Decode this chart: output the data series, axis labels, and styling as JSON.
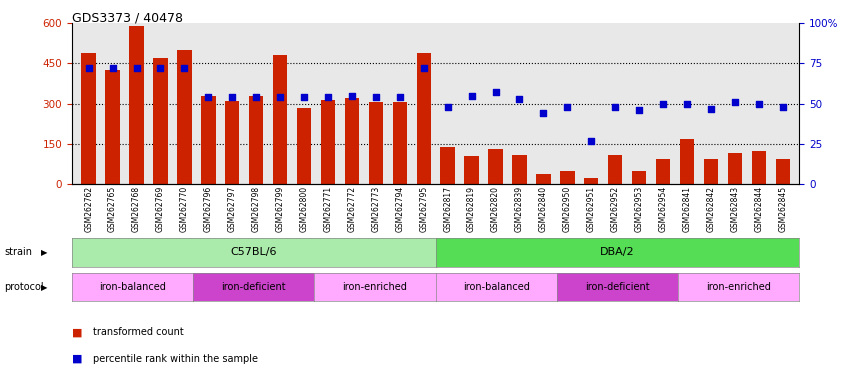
{
  "title": "GDS3373 / 40478",
  "samples": [
    "GSM262762",
    "GSM262765",
    "GSM262768",
    "GSM262769",
    "GSM262770",
    "GSM262796",
    "GSM262797",
    "GSM262798",
    "GSM262799",
    "GSM262800",
    "GSM262771",
    "GSM262772",
    "GSM262773",
    "GSM262794",
    "GSM262795",
    "GSM262817",
    "GSM262819",
    "GSM262820",
    "GSM262839",
    "GSM262840",
    "GSM262950",
    "GSM262951",
    "GSM262952",
    "GSM262953",
    "GSM262954",
    "GSM262841",
    "GSM262842",
    "GSM262843",
    "GSM262844",
    "GSM262845"
  ],
  "bar_values": [
    490,
    425,
    590,
    470,
    500,
    330,
    310,
    330,
    480,
    285,
    315,
    322,
    305,
    308,
    490,
    140,
    105,
    130,
    110,
    40,
    50,
    25,
    110,
    50,
    95,
    170,
    95,
    115,
    125,
    95
  ],
  "percentile_values": [
    72,
    72,
    72,
    72,
    72,
    54,
    54,
    54,
    54,
    54,
    54,
    55,
    54,
    54,
    72,
    48,
    55,
    57,
    53,
    44,
    48,
    27,
    48,
    46,
    50,
    50,
    47,
    51,
    50,
    48
  ],
  "strain_groups": [
    {
      "label": "C57BL/6",
      "start": 0,
      "end": 15,
      "color": "#aaeaaa"
    },
    {
      "label": "DBA/2",
      "start": 15,
      "end": 30,
      "color": "#55dd55"
    }
  ],
  "protocol_groups": [
    {
      "label": "iron-balanced",
      "start": 0,
      "end": 5,
      "color": "#ffaaff"
    },
    {
      "label": "iron-deficient",
      "start": 5,
      "end": 10,
      "color": "#cc44cc"
    },
    {
      "label": "iron-enriched",
      "start": 10,
      "end": 15,
      "color": "#ffaaff"
    },
    {
      "label": "iron-balanced",
      "start": 15,
      "end": 20,
      "color": "#ffaaff"
    },
    {
      "label": "iron-deficient",
      "start": 20,
      "end": 25,
      "color": "#cc44cc"
    },
    {
      "label": "iron-enriched",
      "start": 25,
      "end": 30,
      "color": "#ffaaff"
    }
  ],
  "bar_color": "#cc2200",
  "dot_color": "#0000cc",
  "ylim_left": [
    0,
    600
  ],
  "ylim_right": [
    0,
    100
  ],
  "yticks_left": [
    0,
    150,
    300,
    450,
    600
  ],
  "yticks_right": [
    0,
    25,
    50,
    75,
    100
  ],
  "plot_bg_color": "#e8e8e8",
  "fig_bg_color": "#ffffff"
}
